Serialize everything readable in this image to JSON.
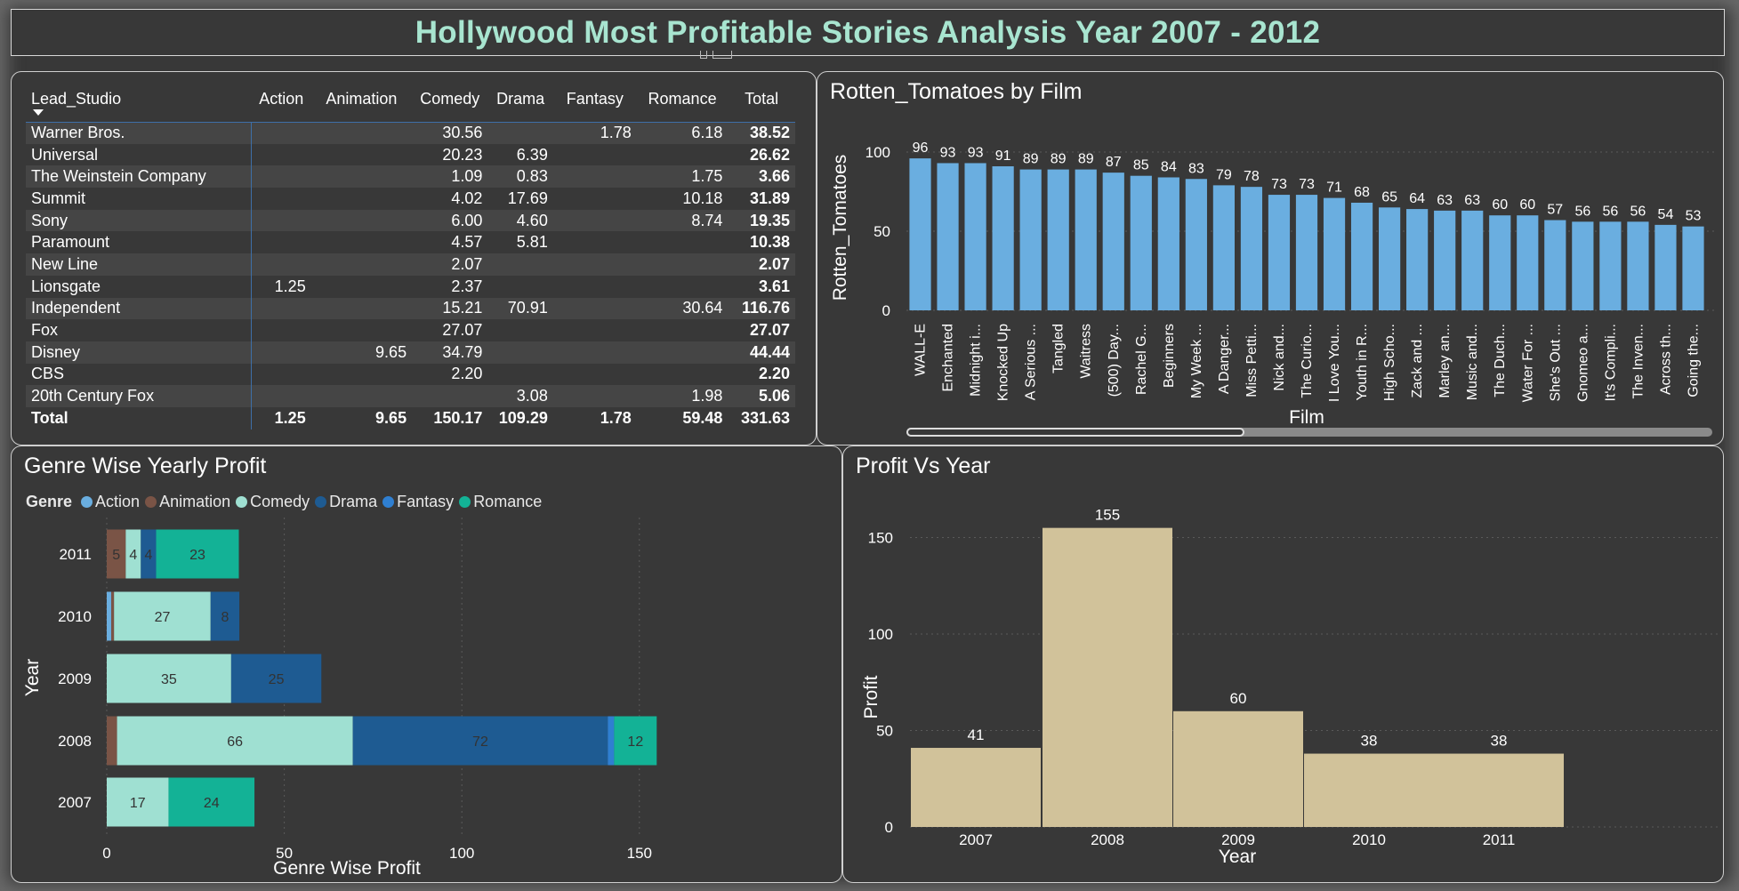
{
  "title": "Hollywood Most Profitable Stories Analysis Year 2007 - 2012",
  "colors": {
    "title": "#a8e5d0",
    "bar_blue": "#6aaee0",
    "bar_tan": "#d1c29a",
    "Action": "#6aaee0",
    "Animation": "#7a5446",
    "Comedy": "#9fe0d2",
    "Drama": "#1e5b92",
    "Fantasy": "#2f7fd1",
    "Romance": "#13b296"
  },
  "matrix": {
    "headers": [
      "Lead_Studio",
      "Action",
      "Animation",
      "Comedy",
      "Drama",
      "Fantasy",
      "Romance",
      "Total"
    ],
    "rows": [
      [
        "Warner Bros.",
        "",
        "",
        "30.56",
        "",
        "1.78",
        "6.18",
        "38.52"
      ],
      [
        "Universal",
        "",
        "",
        "20.23",
        "6.39",
        "",
        "",
        "26.62"
      ],
      [
        "The Weinstein Company",
        "",
        "",
        "1.09",
        "0.83",
        "",
        "1.75",
        "3.66"
      ],
      [
        "Summit",
        "",
        "",
        "4.02",
        "17.69",
        "",
        "10.18",
        "31.89"
      ],
      [
        "Sony",
        "",
        "",
        "6.00",
        "4.60",
        "",
        "8.74",
        "19.35"
      ],
      [
        "Paramount",
        "",
        "",
        "4.57",
        "5.81",
        "",
        "",
        "10.38"
      ],
      [
        "New Line",
        "",
        "",
        "2.07",
        "",
        "",
        "",
        "2.07"
      ],
      [
        "Lionsgate",
        "1.25",
        "",
        "2.37",
        "",
        "",
        "",
        "3.61"
      ],
      [
        "Independent",
        "",
        "",
        "15.21",
        "70.91",
        "",
        "30.64",
        "116.76"
      ],
      [
        "Fox",
        "",
        "",
        "27.07",
        "",
        "",
        "",
        "27.07"
      ],
      [
        "Disney",
        "",
        "9.65",
        "34.79",
        "",
        "",
        "",
        "44.44"
      ],
      [
        "CBS",
        "",
        "",
        "2.20",
        "",
        "",
        "",
        "2.20"
      ],
      [
        "20th Century Fox",
        "",
        "",
        "",
        "3.08",
        "",
        "1.98",
        "5.06"
      ]
    ],
    "total_row": [
      "Total",
      "1.25",
      "9.65",
      "150.17",
      "109.29",
      "1.78",
      "59.48",
      "331.63"
    ]
  },
  "chart_data": [
    {
      "id": "rotten",
      "type": "bar",
      "title": "Rotten_Tomatoes by Film",
      "xlabel": "Film",
      "ylabel": "Rotten_Tomatoes",
      "ylim": [
        0,
        100
      ],
      "yticks": [
        0,
        50,
        100
      ],
      "grid": true,
      "categories": [
        "WALL-E",
        "Enchanted",
        "Midnight i...",
        "Knocked Up",
        "A Serious ...",
        "Tangled",
        "Waitress",
        "(500) Day...",
        "Rachel G...",
        "Beginners",
        "My Week ...",
        "A Danger...",
        "Miss Petti...",
        "Nick and...",
        "The Curio...",
        "I Love You...",
        "Youth in R...",
        "High Scho...",
        "Zack and ...",
        "Marley an...",
        "Music and...",
        "The Duch...",
        "Water For ...",
        "She's Out ...",
        "Gnomeo a...",
        "It's Compli...",
        "The Inven...",
        "Across th...",
        "Going the..."
      ],
      "values": [
        96,
        93,
        93,
        91,
        89,
        89,
        89,
        87,
        85,
        84,
        83,
        79,
        78,
        73,
        73,
        71,
        68,
        65,
        64,
        63,
        63,
        60,
        60,
        57,
        56,
        56,
        56,
        54,
        53
      ]
    },
    {
      "id": "genre",
      "type": "bar",
      "orientation": "horizontal",
      "stacked": true,
      "title": "Genre Wise Yearly Profit",
      "legend_title": "Genre",
      "legend_position": "top-left",
      "xlabel": "Genre Wise Profit",
      "ylabel": "Year",
      "xlim": [
        0,
        160
      ],
      "xticks": [
        0,
        50,
        100,
        150
      ],
      "grid": true,
      "categories": [
        "2011",
        "2010",
        "2009",
        "2008",
        "2007"
      ],
      "series": [
        {
          "name": "Action",
          "values": [
            0,
            1.25,
            0,
            0,
            0
          ]
        },
        {
          "name": "Animation",
          "values": [
            5.35,
            0.8,
            0,
            2.9,
            0
          ]
        },
        {
          "name": "Comedy",
          "values": [
            4.25,
            27.2,
            35.04,
            66.4,
            17.4
          ]
        },
        {
          "name": "Drama",
          "values": [
            4.3,
            8.1,
            25.4,
            71.8,
            0
          ]
        },
        {
          "name": "Fantasy",
          "values": [
            0,
            0,
            0,
            1.78,
            0
          ]
        },
        {
          "name": "Romance",
          "values": [
            23.3,
            0,
            0,
            12.0,
            24.2
          ]
        }
      ],
      "data_labels": [
        [
          "",
          "",
          "5",
          "4",
          "4",
          "",
          "23"
        ],
        [
          "",
          "",
          "",
          "27",
          "8",
          "",
          ""
        ],
        [
          "",
          "",
          "",
          "35",
          "25",
          "",
          ""
        ],
        [
          "",
          "",
          "",
          "66",
          "72",
          "",
          "12"
        ],
        [
          "",
          "",
          "",
          "17",
          "",
          "",
          "24"
        ]
      ]
    },
    {
      "id": "profit",
      "type": "bar",
      "title": "Profit Vs Year",
      "xlabel": "Year",
      "ylabel": "Profit",
      "ylim": [
        0,
        170
      ],
      "yticks": [
        0,
        50,
        100,
        150
      ],
      "grid": true,
      "categories": [
        "2007",
        "2008",
        "2009",
        "2010",
        "2011"
      ],
      "values": [
        41,
        155,
        60,
        38,
        38
      ]
    }
  ]
}
